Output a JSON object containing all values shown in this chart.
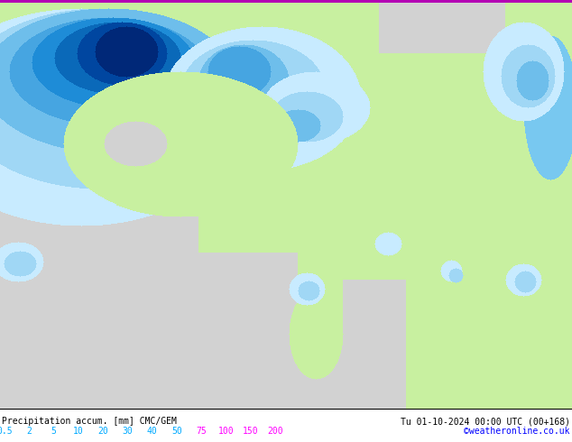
{
  "title_left": "Precipitation accum. [mm] CMC/GEM",
  "title_right": "Tu 01-10-2024 00:00 UTC (00+168)",
  "credit": "©weatheronline.co.uk",
  "colorbar_values": [
    "0.5",
    "2",
    "5",
    "10",
    "20",
    "30",
    "40",
    "50",
    "75",
    "100",
    "150",
    "200"
  ],
  "colorbar_label_colors": [
    "#00aaff",
    "#00aaff",
    "#00aaff",
    "#00aaff",
    "#00aaff",
    "#00aaff",
    "#00aaff",
    "#00aaff",
    "#ff00ff",
    "#ff00ff",
    "#ff00ff",
    "#ff00ff"
  ],
  "credit_color": "#0000ff",
  "title_color": "#000000",
  "fig_width": 6.34,
  "fig_height": 4.9,
  "dpi": 100,
  "land_color": [
    200,
    240,
    160
  ],
  "sea_color": [
    210,
    210,
    210
  ],
  "border_color": [
    160,
    130,
    130
  ],
  "precip_colors": {
    "0.5": [
      200,
      235,
      255
    ],
    "2": [
      160,
      215,
      245
    ],
    "5": [
      110,
      190,
      235
    ],
    "10": [
      70,
      165,
      225
    ],
    "20": [
      30,
      140,
      215
    ],
    "30": [
      10,
      105,
      185
    ],
    "40": [
      0,
      70,
      160
    ],
    "50": [
      0,
      40,
      120
    ],
    "75": [
      220,
      0,
      220
    ],
    "100": [
      180,
      0,
      180
    ],
    "150": [
      140,
      0,
      140
    ],
    "200": [
      100,
      0,
      100
    ]
  },
  "top_bar_color": "#cc00cc",
  "bottom_bg": "#ffffff"
}
